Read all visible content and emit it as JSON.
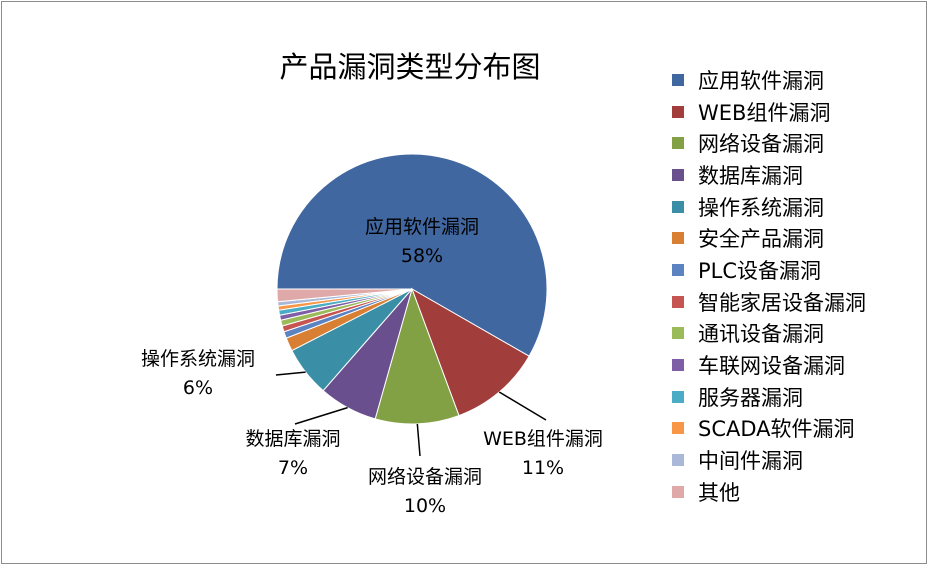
{
  "chart_data": {
    "type": "pie",
    "title": "产品漏洞类型分布图",
    "slices": [
      {
        "name": "应用软件漏洞",
        "value": 58,
        "label": "58%",
        "color": "#4167A0"
      },
      {
        "name": "WEB组件漏洞",
        "value": 11,
        "label": "11%",
        "color": "#A13D3A"
      },
      {
        "name": "网络设备漏洞",
        "value": 10,
        "label": "10%",
        "color": "#82A044"
      },
      {
        "name": "数据库漏洞",
        "value": 7,
        "label": "7%",
        "color": "#6A4F8E"
      },
      {
        "name": "操作系统漏洞",
        "value": 6,
        "label": "6%",
        "color": "#3A8FA6"
      },
      {
        "name": "安全产品漏洞",
        "value": 1.6,
        "label": "",
        "color": "#D87F34"
      },
      {
        "name": "PLC设备漏洞",
        "value": 0.8,
        "label": "",
        "color": "#5B83C2"
      },
      {
        "name": "智能家居设备漏洞",
        "value": 0.7,
        "label": "",
        "color": "#C65451"
      },
      {
        "name": "通讯设备漏洞",
        "value": 0.7,
        "label": "",
        "color": "#9BBB59"
      },
      {
        "name": "车联网设备漏洞",
        "value": 0.6,
        "label": "",
        "color": "#7E5FA6"
      },
      {
        "name": "服务器漏洞",
        "value": 0.6,
        "label": "",
        "color": "#4BACC6"
      },
      {
        "name": "SCADA软件漏洞",
        "value": 0.5,
        "label": "",
        "color": "#F79646"
      },
      {
        "name": "中间件漏洞",
        "value": 0.5,
        "label": "",
        "color": "#A9B7D8"
      },
      {
        "name": "其他",
        "value": 1.5,
        "label": "",
        "color": "#E0A9A9"
      }
    ],
    "legend_position": "right",
    "start_angle_deg": 180,
    "direction": "clockwise"
  }
}
